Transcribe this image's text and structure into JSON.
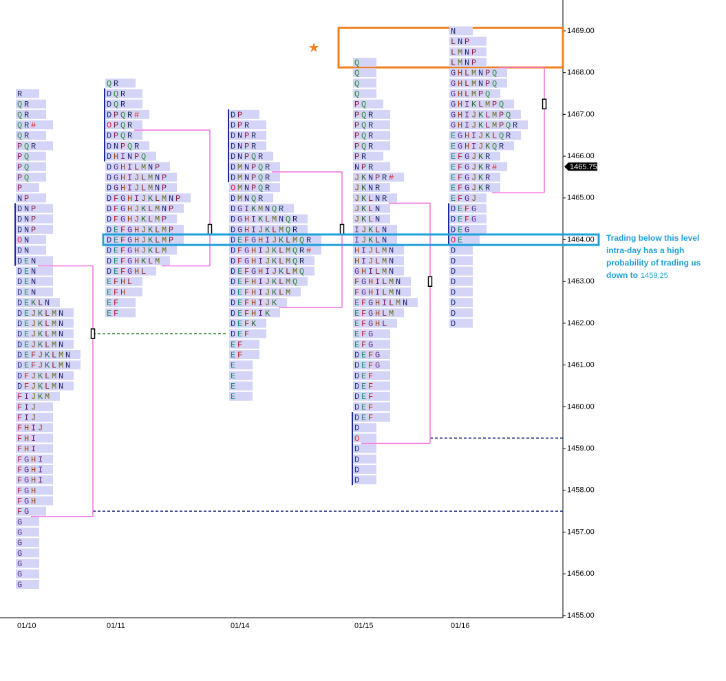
{
  "chart_data": {
    "type": "market_profile",
    "ylim": [
      1454.95,
      1469.74
    ],
    "yticks": [
      {
        "value": 1469,
        "label": "1469.00"
      },
      {
        "value": 1468,
        "label": "1468.00"
      },
      {
        "value": 1467,
        "label": "1467.00"
      },
      {
        "value": 1466,
        "label": "1466.00"
      },
      {
        "value": 1465,
        "label": "1465.00"
      },
      {
        "value": 1464,
        "label": "1464.00"
      },
      {
        "value": 1463,
        "label": "1463.00"
      },
      {
        "value": 1462,
        "label": "1462.00"
      },
      {
        "value": 1461,
        "label": "1461.00"
      },
      {
        "value": 1460,
        "label": "1460.00"
      },
      {
        "value": 1459,
        "label": "1459.00"
      },
      {
        "value": 1458,
        "label": "1458.00"
      },
      {
        "value": 1457,
        "label": "1457.00"
      },
      {
        "value": 1456,
        "label": "1456.00"
      },
      {
        "value": 1455,
        "label": "1455.00"
      }
    ],
    "tick_size": 0.25,
    "last_price": {
      "value": 1465.75,
      "label": "1465.75"
    },
    "letter_colors": {
      "D": "#1a2a8a",
      "E": "#1a8a6a",
      "F": "#b02020",
      "G": "#5a2a8a",
      "H": "#a04010",
      "I": "#6a1a6a",
      "J": "#8a5a10",
      "K": "#2a6a2a",
      "L": "#8a1a1a",
      "M": "#6a6a1a",
      "N": "#1a1a6a",
      "O": "#e02040",
      "P": "#8a1a3a",
      "Q": "#2a8a3a",
      "R": "#1a2a5a",
      "#": "#e02020"
    },
    "value_area_color": "#f070e0",
    "ib_color": "#1a2a9a",
    "volume_color": "#d4d4f6",
    "profiles": [
      {
        "date": "01/10",
        "top": 1467.5,
        "value_area": [
          1463.25,
          1457.5
        ],
        "ib": [
          1464.75,
          1463.5
        ],
        "poc": 1461.75,
        "rows": [
          "R",
          "QR",
          "QR",
          "QR#",
          "QR",
          "PQR",
          "PQ",
          "PQ",
          "PQ",
          "P",
          "NP",
          "DNP",
          "DNP",
          "DNP",
          "ON",
          "DN",
          "DEN",
          "DEN",
          "DEN",
          "DEN",
          "DEKLN",
          "DEJKLMN",
          "DEJKLMN",
          "DEJKLMN",
          "DEJKLMN",
          "DEFJKLMN",
          "DEFJKLMN",
          "DFJKLMN",
          "DFJKLMN",
          "FIJKM",
          "FIJ",
          "FIJ",
          "FHIJ",
          "FHI",
          "FHI",
          "FGHI",
          "FGHI",
          "FGHI",
          "FGH",
          "FGH",
          "FG",
          "G",
          "G",
          "G",
          "G",
          "G",
          "G",
          "G"
        ]
      },
      {
        "date": "01/11",
        "top": 1467.75,
        "value_area": [
          1466.5,
          1463.5
        ],
        "ib": [
          1467.5,
          1466.0
        ],
        "poc": 1464.25,
        "rows": [
          "QR",
          "DQR",
          "DQR",
          "DPQR#",
          "OPQR",
          "DPQR",
          "DNPQR",
          "DHINPQ",
          "DGHILMNP",
          "DGHIJLMNP",
          "DGHIJLMNP",
          "DFGHIJKLMNP",
          "DFGHJKLMNP",
          "DFGHJKLMP",
          "DEFGHJKLMP",
          "DEFGHJKLMP",
          "DEFGHJKLM",
          "DEFGHKLM",
          "DEFGHL",
          "EFHL",
          "EFH",
          "EF",
          "EF"
        ]
      },
      {
        "date": "01/14",
        "top": 1467.0,
        "value_area": [
          1465.5,
          1462.5
        ],
        "ib": [
          1467.0,
          1465.5
        ],
        "poc": 1464.25,
        "rows": [
          "DP",
          "DPR",
          "DNPR",
          "DNPR",
          "DNPQR",
          "DMNPQR",
          "DMNPQR",
          "OMNPQR",
          "DMNQR",
          "DGIKMNQR",
          "DGHIKLMNQR",
          "DGHIJKLMQR",
          "DEFGHIJKLMQR",
          "DFGHIJKLMQR#",
          "DFGHIJKLMQR",
          "DEFGHIJKLMQ",
          "DEFHIJKLMQ",
          "DEFHIJKLM",
          "DEFHIJK",
          "DEFHIK",
          "DEFK",
          "DEF",
          "EF",
          "EF",
          "E",
          "E",
          "E",
          "E"
        ]
      },
      {
        "date": "01/15",
        "top": 1468.25,
        "value_area": [
          1464.75,
          1459.25
        ],
        "ib": [
          1459.75,
          1458.25
        ],
        "poc": 1463.0,
        "rows": [
          "Q",
          "Q",
          "Q",
          "Q",
          "PQ",
          "PQR",
          "PQR",
          "PQR",
          "PQR",
          "PR",
          "NPR",
          "JKNPR#",
          "JKNR",
          "JKLNR",
          "JKLN",
          "JKLN",
          "IJKLN",
          "IJKLN",
          "HIJLMN",
          "HIJLMN",
          "GHILMN",
          "FGHILMN",
          "FGHILMN",
          "EFGHILMN",
          "EFGHLM",
          "EFGHL",
          "EFG",
          "EFG",
          "DEFG",
          "DEFG",
          "DEF",
          "DEF",
          "DEF",
          "DEF",
          "DEF",
          "D",
          "O",
          "D",
          "D",
          "D",
          "D"
        ]
      },
      {
        "date": "01/16",
        "top": 1469.0,
        "value_area": [
          1468.0,
          1465.25
        ],
        "ib": [
          1464.75,
          1464.0
        ],
        "poc": 1467.25,
        "rows": [
          "N",
          "LNP",
          "LMNP",
          "LMNP",
          "GHLMNPQ",
          "GHLMNPQ",
          "GHLMPQ",
          "GHIKLMPQ",
          "GHIJKLMPQ",
          "GHIJKLMPQR",
          "EGHIJKLQR",
          "EGHIJKQR",
          "EFGJKR",
          "EFGJKR#",
          "EFGJKR",
          "EFGJKR",
          "EFGJ",
          "DEFG",
          "DEFG",
          "DEG",
          "OE",
          "D",
          "D",
          "D",
          "D",
          "D",
          "D",
          "D",
          "D"
        ]
      }
    ],
    "naked_levels": [
      {
        "value": 1461.75,
        "color": "#1a7a1a",
        "from": 0,
        "to": 2
      },
      {
        "value": 1457.5,
        "color": "#1a237e",
        "from": 0
      },
      {
        "value": 1459.25,
        "color": "#1a237e",
        "from": 3
      }
    ],
    "highlight_zone": {
      "range": [
        1468.25,
        1469.0
      ],
      "color": "#f08020"
    },
    "highlight_level": {
      "value": 1464.0,
      "color": "#1ea0d8"
    },
    "annotation": {
      "lines": [
        "Trading below this level",
        "intra-day has a high",
        "probability of trading us",
        "down to"
      ],
      "target": "1459.25"
    }
  }
}
